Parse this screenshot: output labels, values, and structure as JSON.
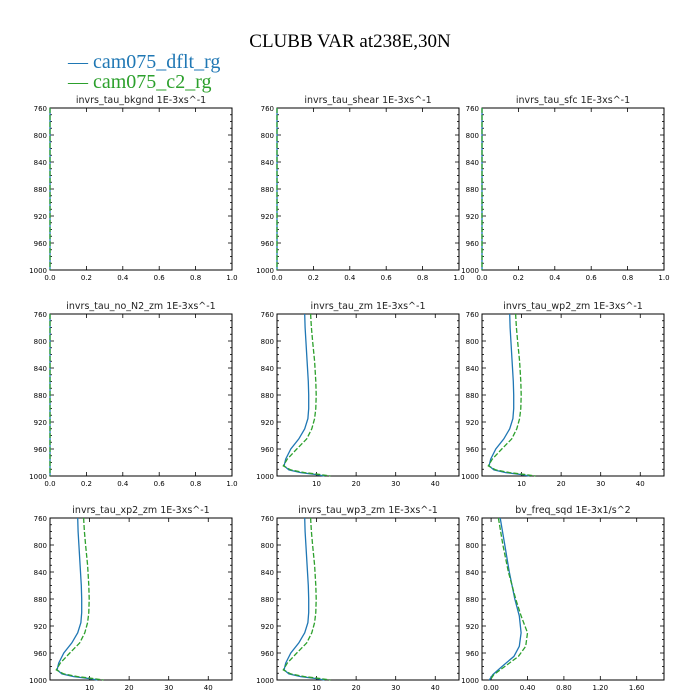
{
  "title": "CLUBB VAR at238E,30N",
  "colors": {
    "series0": "#1f77b4",
    "series1": "#2ca02c"
  },
  "legend": [
    "cam075_dflt_rg",
    "cam075_c2_rg"
  ],
  "chart_data": [
    {
      "type": "line",
      "title": "invrs_tau_bkgnd   1E-3xs^-1",
      "xlim": [
        0,
        1
      ],
      "ylim": [
        760,
        1000
      ],
      "y_inverted": true,
      "xticks": [
        "0.0",
        "0.2",
        "0.4",
        "0.6",
        "0.8",
        "1.0"
      ],
      "yticks": [
        "760",
        "800",
        "840",
        "880",
        "920",
        "960",
        "1000"
      ],
      "series": [
        {
          "name": "cam075_dflt_rg",
          "x": [
            0,
            0,
            0,
            0,
            0,
            0,
            0
          ],
          "y": [
            760,
            800,
            840,
            880,
            920,
            960,
            1000
          ]
        },
        {
          "name": "cam075_c2_rg",
          "x": [
            0,
            0,
            0,
            0,
            0,
            0,
            0
          ],
          "y": [
            760,
            800,
            840,
            880,
            920,
            960,
            1000
          ]
        }
      ]
    },
    {
      "type": "line",
      "title": "invrs_tau_shear   1E-3xs^-1",
      "xlim": [
        0,
        1
      ],
      "ylim": [
        760,
        1000
      ],
      "y_inverted": true,
      "xticks": [
        "0.0",
        "0.2",
        "0.4",
        "0.6",
        "0.8",
        "1.0"
      ],
      "yticks": [
        "760",
        "800",
        "840",
        "880",
        "920",
        "960",
        "1000"
      ],
      "series": [
        {
          "name": "cam075_dflt_rg",
          "x": [
            0,
            0,
            0,
            0,
            0,
            0,
            0
          ],
          "y": [
            760,
            800,
            840,
            880,
            920,
            960,
            1000
          ]
        },
        {
          "name": "cam075_c2_rg",
          "x": [
            0,
            0,
            0,
            0,
            0,
            0,
            0
          ],
          "y": [
            760,
            800,
            840,
            880,
            920,
            960,
            1000
          ]
        }
      ]
    },
    {
      "type": "line",
      "title": "invrs_tau_sfc   1E-3xs^-1",
      "xlim": [
        0,
        1
      ],
      "ylim": [
        760,
        1000
      ],
      "y_inverted": true,
      "xticks": [
        "0.0",
        "0.2",
        "0.4",
        "0.6",
        "0.8",
        "1.0"
      ],
      "yticks": [
        "760",
        "800",
        "840",
        "880",
        "920",
        "960",
        "1000"
      ],
      "series": [
        {
          "name": "cam075_dflt_rg",
          "x": [
            0,
            0,
            0,
            0,
            0,
            0,
            0
          ],
          "y": [
            760,
            800,
            840,
            880,
            920,
            960,
            1000
          ]
        },
        {
          "name": "cam075_c2_rg",
          "x": [
            0,
            0,
            0,
            0,
            0,
            0,
            0
          ],
          "y": [
            760,
            800,
            840,
            880,
            920,
            960,
            1000
          ]
        }
      ]
    },
    {
      "type": "line",
      "title": "invrs_tau_no_N2_zm   1E-3xs^-1",
      "xlim": [
        0,
        1
      ],
      "ylim": [
        760,
        1000
      ],
      "y_inverted": true,
      "xticks": [
        "0.0",
        "0.2",
        "0.4",
        "0.6",
        "0.8",
        "1.0"
      ],
      "yticks": [
        "760",
        "800",
        "840",
        "880",
        "920",
        "960",
        "1000"
      ],
      "series": [
        {
          "name": "cam075_dflt_rg",
          "x": [
            0,
            0,
            0,
            0,
            0,
            0,
            0
          ],
          "y": [
            760,
            800,
            840,
            880,
            920,
            960,
            1000
          ]
        },
        {
          "name": "cam075_c2_rg",
          "x": [
            0,
            0,
            0,
            0,
            0,
            0,
            0
          ],
          "y": [
            760,
            800,
            840,
            880,
            920,
            960,
            1000
          ]
        }
      ]
    },
    {
      "type": "line",
      "title": "invrs_tau_zm   1E-3xs^-1",
      "xlim": [
        0,
        46
      ],
      "ylim": [
        760,
        1000
      ],
      "y_inverted": true,
      "xticks": [
        "10",
        "20",
        "30",
        "40"
      ],
      "xtick_values": [
        10,
        20,
        30,
        40
      ],
      "yticks": [
        "760",
        "800",
        "840",
        "880",
        "920",
        "960",
        "1000"
      ],
      "series": [
        {
          "name": "cam075_dflt_rg",
          "x": [
            7.0,
            7.1,
            7.3,
            7.6,
            7.9,
            8.0,
            8.0,
            7.8,
            7.0,
            5.5,
            3.5,
            2.2,
            1.8,
            3.0,
            6.0,
            10.0,
            12.0
          ],
          "y": [
            760,
            780,
            800,
            830,
            860,
            880,
            900,
            915,
            930,
            945,
            960,
            975,
            985,
            991,
            995,
            998,
            1000
          ]
        },
        {
          "name": "cam075_c2_rg",
          "x": [
            8.5,
            8.7,
            9.0,
            9.5,
            9.8,
            9.9,
            9.8,
            9.5,
            8.8,
            7.5,
            5.0,
            2.6,
            1.6,
            3.5,
            7.0,
            11.0,
            13.5
          ],
          "y": [
            760,
            780,
            800,
            830,
            860,
            880,
            900,
            915,
            930,
            945,
            960,
            975,
            985,
            991,
            995,
            998,
            1000
          ]
        }
      ]
    },
    {
      "type": "line",
      "title": "invrs_tau_wp2_zm   1E-3xs^-1",
      "xlim": [
        0,
        46
      ],
      "ylim": [
        760,
        1000
      ],
      "y_inverted": true,
      "xticks": [
        "10",
        "20",
        "30",
        "40"
      ],
      "xtick_values": [
        10,
        20,
        30,
        40
      ],
      "yticks": [
        "760",
        "800",
        "840",
        "880",
        "920",
        "960",
        "1000"
      ],
      "series": [
        {
          "name": "cam075_dflt_rg",
          "x": [
            7.0,
            7.1,
            7.3,
            7.6,
            7.9,
            8.0,
            8.0,
            7.8,
            7.0,
            5.5,
            3.5,
            2.2,
            1.8,
            3.0,
            6.0,
            10.0,
            12.0
          ],
          "y": [
            760,
            780,
            800,
            830,
            860,
            880,
            900,
            915,
            930,
            945,
            960,
            975,
            985,
            991,
            995,
            998,
            1000
          ]
        },
        {
          "name": "cam075_c2_rg",
          "x": [
            8.5,
            8.7,
            9.0,
            9.5,
            9.8,
            9.9,
            9.8,
            9.5,
            8.8,
            7.5,
            5.0,
            2.6,
            1.6,
            3.5,
            7.0,
            11.0,
            13.5
          ],
          "y": [
            760,
            780,
            800,
            830,
            860,
            880,
            900,
            915,
            930,
            945,
            960,
            975,
            985,
            991,
            995,
            998,
            1000
          ]
        }
      ]
    },
    {
      "type": "line",
      "title": "invrs_tau_xp2_zm   1E-3xs^-1",
      "xlim": [
        0,
        46
      ],
      "ylim": [
        760,
        1000
      ],
      "y_inverted": true,
      "xticks": [
        "10",
        "20",
        "30",
        "40"
      ],
      "xtick_values": [
        10,
        20,
        30,
        40
      ],
      "yticks": [
        "760",
        "800",
        "840",
        "880",
        "920",
        "960",
        "1000"
      ],
      "series": [
        {
          "name": "cam075_dflt_rg",
          "x": [
            7.0,
            7.1,
            7.3,
            7.6,
            7.9,
            8.0,
            8.0,
            7.8,
            7.0,
            5.5,
            3.5,
            2.2,
            1.8,
            3.0,
            6.0,
            10.0,
            12.0
          ],
          "y": [
            760,
            780,
            800,
            830,
            860,
            880,
            900,
            915,
            930,
            945,
            960,
            975,
            985,
            991,
            995,
            998,
            1000
          ]
        },
        {
          "name": "cam075_c2_rg",
          "x": [
            8.5,
            8.7,
            9.0,
            9.5,
            9.8,
            9.9,
            9.8,
            9.5,
            8.8,
            7.5,
            5.0,
            2.6,
            1.6,
            3.5,
            7.0,
            11.0,
            13.5
          ],
          "y": [
            760,
            780,
            800,
            830,
            860,
            880,
            900,
            915,
            930,
            945,
            960,
            975,
            985,
            991,
            995,
            998,
            1000
          ]
        }
      ]
    },
    {
      "type": "line",
      "title": "invrs_tau_wp3_zm   1E-3xs^-1",
      "xlim": [
        0,
        46
      ],
      "ylim": [
        760,
        1000
      ],
      "y_inverted": true,
      "xticks": [
        "10",
        "20",
        "30",
        "40"
      ],
      "xtick_values": [
        10,
        20,
        30,
        40
      ],
      "yticks": [
        "760",
        "800",
        "840",
        "880",
        "920",
        "960",
        "1000"
      ],
      "series": [
        {
          "name": "cam075_dflt_rg",
          "x": [
            7.0,
            7.1,
            7.3,
            7.6,
            7.9,
            8.0,
            8.0,
            7.8,
            7.0,
            5.5,
            3.5,
            2.2,
            1.8,
            3.0,
            6.0,
            10.0,
            12.0
          ],
          "y": [
            760,
            780,
            800,
            830,
            860,
            880,
            900,
            915,
            930,
            945,
            960,
            975,
            985,
            991,
            995,
            998,
            1000
          ]
        },
        {
          "name": "cam075_c2_rg",
          "x": [
            8.5,
            8.7,
            9.0,
            9.5,
            9.8,
            9.9,
            9.8,
            9.5,
            8.8,
            7.5,
            5.0,
            2.6,
            1.6,
            3.5,
            7.0,
            11.0,
            13.5
          ],
          "y": [
            760,
            780,
            800,
            830,
            860,
            880,
            900,
            915,
            930,
            945,
            960,
            975,
            985,
            991,
            995,
            998,
            1000
          ]
        }
      ]
    },
    {
      "type": "line",
      "title": "bv_freq_sqd   1E-3x1/s^2",
      "xlim": [
        -0.1,
        1.9
      ],
      "ylim": [
        760,
        1000
      ],
      "y_inverted": true,
      "xticks": [
        "0.00",
        "0.40",
        "0.80",
        "1.20",
        "1.60"
      ],
      "xtick_values": [
        0,
        0.4,
        0.8,
        1.2,
        1.6
      ],
      "yticks": [
        "760",
        "800",
        "840",
        "880",
        "920",
        "960",
        "1000"
      ],
      "series": [
        {
          "name": "cam075_dflt_rg",
          "x": [
            0.1,
            0.15,
            0.2,
            0.26,
            0.31,
            0.33,
            0.31,
            0.25,
            0.12,
            0.02,
            -0.02
          ],
          "y": [
            760,
            800,
            840,
            880,
            905,
            930,
            950,
            965,
            980,
            992,
            1000
          ]
        },
        {
          "name": "cam075_c2_rg",
          "x": [
            0.08,
            0.13,
            0.19,
            0.27,
            0.33,
            0.4,
            0.38,
            0.3,
            0.15,
            0.03,
            -0.01
          ],
          "y": [
            760,
            800,
            840,
            880,
            905,
            930,
            950,
            965,
            980,
            992,
            1000
          ]
        }
      ]
    }
  ]
}
